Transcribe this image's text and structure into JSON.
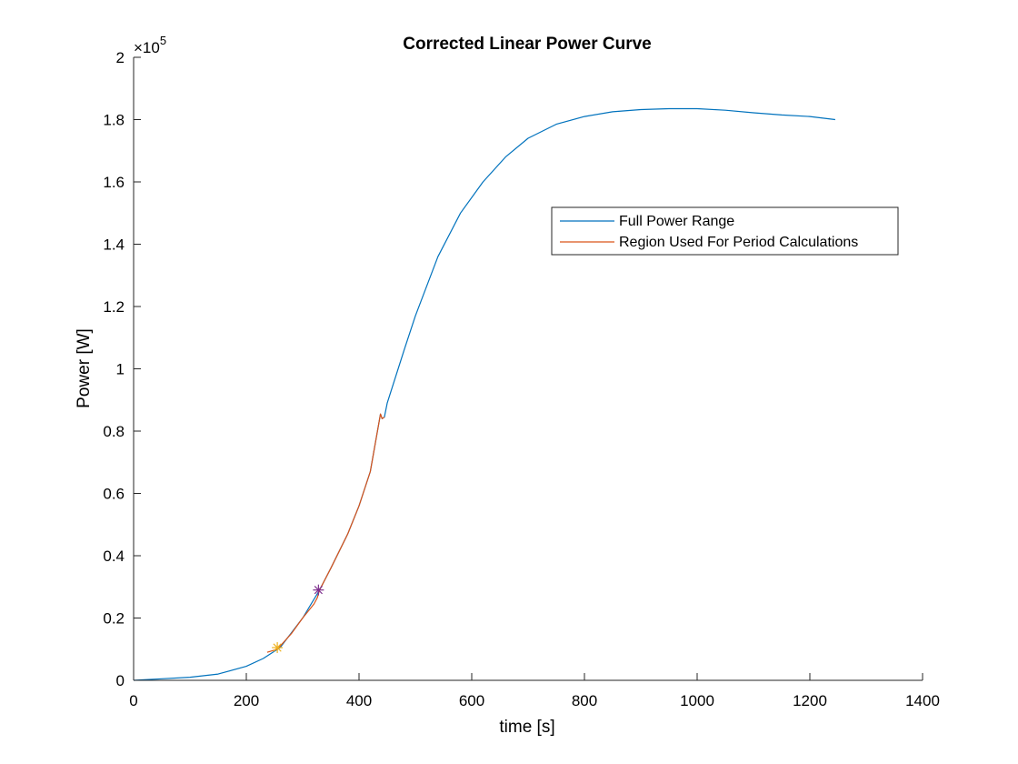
{
  "chart_data": {
    "type": "line",
    "title": "Corrected Linear Power Curve",
    "xlabel": "time [s]",
    "ylabel": "Power [W]",
    "xlim": [
      0,
      1400
    ],
    "ylim": [
      0,
      2
    ],
    "y_multiplier": "×10",
    "y_multiplier_exp": "5",
    "x_ticks": [
      "0",
      "200",
      "400",
      "600",
      "800",
      "1000",
      "1200",
      "1400"
    ],
    "y_ticks": [
      "0",
      "0.2",
      "0.4",
      "0.6",
      "0.8",
      "1",
      "1.2",
      "1.4",
      "1.6",
      "1.8",
      "2"
    ],
    "grid": false,
    "legend_position": "top-right",
    "series": [
      {
        "name": "Full Power Range",
        "color": "#0072BD",
        "x": [
          0,
          50,
          100,
          150,
          200,
          230,
          260,
          300,
          330,
          350,
          380,
          400,
          420,
          438,
          441,
          445,
          450,
          480,
          500,
          540,
          580,
          620,
          660,
          700,
          750,
          800,
          850,
          900,
          950,
          1000,
          1050,
          1100,
          1150,
          1200,
          1245
        ],
        "y": [
          0,
          0.005,
          0.01,
          0.02,
          0.045,
          0.07,
          0.105,
          0.2,
          0.29,
          0.36,
          0.47,
          0.56,
          0.67,
          0.855,
          0.84,
          0.845,
          0.89,
          1.06,
          1.17,
          1.36,
          1.5,
          1.6,
          1.68,
          1.74,
          1.785,
          1.81,
          1.825,
          1.832,
          1.835,
          1.835,
          1.83,
          1.822,
          1.815,
          1.81,
          1.8
        ]
      },
      {
        "name": "Region Used For Period Calculations",
        "color": "#D95319",
        "x": [
          237,
          255,
          280,
          300,
          320,
          326,
          330,
          350,
          380,
          400,
          420,
          438,
          441,
          445
        ],
        "y": [
          0.09,
          0.1,
          0.15,
          0.2,
          0.245,
          0.265,
          0.29,
          0.36,
          0.47,
          0.56,
          0.67,
          0.855,
          0.84,
          0.845
        ]
      }
    ],
    "markers": [
      {
        "x": 255,
        "y": 0.105,
        "color": "#EDB120",
        "symbol": "asterisk"
      },
      {
        "x": 328,
        "y": 0.29,
        "color": "#7E2F8E",
        "symbol": "asterisk"
      }
    ]
  }
}
